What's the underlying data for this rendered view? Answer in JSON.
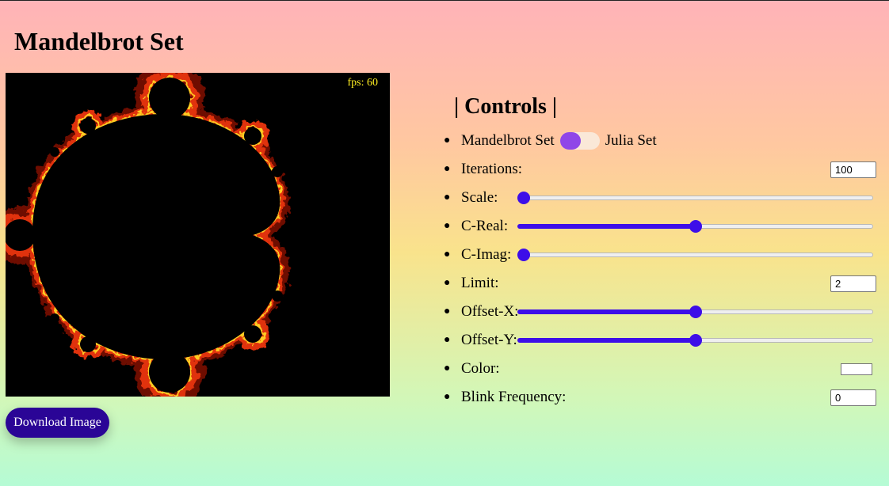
{
  "page": {
    "title": "Mandelbrot Set"
  },
  "canvas": {
    "fps": "fps: 60"
  },
  "actions": {
    "download_label": "Download Image"
  },
  "controls": {
    "title": "| Controls |",
    "mode": {
      "left_label": "Mandelbrot Set",
      "right_label": "Julia Set",
      "value": "Mandelbrot Set"
    },
    "iterations": {
      "label": "Iterations:",
      "value": "100"
    },
    "scale": {
      "label": "Scale:",
      "level": 0.0
    },
    "c_real": {
      "label": "C-Real:",
      "level": 0.5
    },
    "c_imag": {
      "label": "C-Imag:",
      "level": 0.0
    },
    "limit": {
      "label": "Limit:",
      "value": "2"
    },
    "offset_x": {
      "label": "Offset-X:",
      "level": 0.5
    },
    "offset_y": {
      "label": "Offset-Y:",
      "level": 0.5
    },
    "color": {
      "label": "Color:",
      "value": "#ffffff"
    },
    "blink_frequency": {
      "label": "Blink Frequency:",
      "value": "0"
    }
  },
  "colors": {
    "accent": "#3d0ee8",
    "toggle_knob": "#8f46e8",
    "button_bg": "#2a0596",
    "fps_text": "#ffee22"
  }
}
